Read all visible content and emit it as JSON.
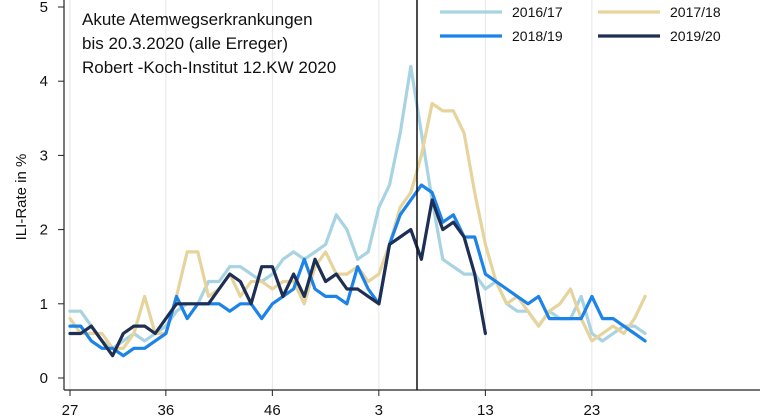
{
  "chart_data": {
    "type": "line",
    "title": "",
    "xlabel": "",
    "ylabel": "ILI-Rate in %",
    "ylim": [
      0,
      5
    ],
    "yticks": [
      0,
      1,
      2,
      3,
      4,
      5
    ],
    "x_start_week": 27,
    "x_tick_labels": [
      {
        "text": "27",
        "index": 0
      },
      {
        "text": "36",
        "index": 9
      },
      {
        "text": "46",
        "index": 19
      },
      {
        "text": "3",
        "index": 29
      },
      {
        "text": "13",
        "index": 39
      },
      {
        "text": "23",
        "index": 49
      }
    ],
    "annotation_lines": [
      "Akute Atemwegserkrankungen",
      "bis 20.3.2020 (alle Erreger)",
      "Robert -Koch-Institut 12.KW 2020"
    ],
    "legend_position": "top-right",
    "grid": "vertical-light",
    "series": [
      {
        "name": "2016/17",
        "color": "#a8d3e2",
        "values": [
          0.9,
          0.9,
          0.7,
          0.5,
          0.4,
          0.5,
          0.6,
          0.5,
          0.6,
          0.7,
          0.9,
          1.0,
          1.0,
          1.3,
          1.3,
          1.5,
          1.5,
          1.4,
          1.3,
          1.4,
          1.6,
          1.7,
          1.6,
          1.7,
          1.8,
          2.2,
          2.0,
          1.6,
          1.7,
          2.3,
          2.6,
          3.3,
          4.2,
          3.3,
          2.4,
          1.6,
          1.5,
          1.4,
          1.4,
          1.2,
          1.3,
          1.0,
          0.9,
          0.9,
          0.7,
          0.9,
          0.8,
          0.8,
          1.1,
          0.6,
          0.5,
          0.6,
          0.7,
          0.7,
          0.6
        ]
      },
      {
        "name": "2017/18",
        "color": "#e6d49c",
        "values": [
          0.8,
          0.6,
          0.6,
          0.6,
          0.4,
          0.4,
          0.6,
          1.1,
          0.6,
          0.6,
          1.1,
          1.7,
          1.7,
          1.1,
          1.2,
          1.4,
          1.1,
          1.3,
          1.3,
          1.2,
          1.3,
          1.3,
          1.0,
          1.5,
          1.7,
          1.4,
          1.4,
          1.5,
          1.3,
          1.4,
          1.8,
          2.3,
          2.5,
          3.0,
          3.7,
          3.6,
          3.6,
          3.3,
          2.5,
          1.8,
          1.3,
          1.0,
          1.1,
          0.9,
          0.7,
          0.9,
          1.0,
          1.2,
          0.8,
          0.5,
          0.6,
          0.7,
          0.6,
          0.8,
          1.1
        ]
      },
      {
        "name": "2018/19",
        "color": "#1c83e8",
        "values": [
          0.7,
          0.7,
          0.5,
          0.4,
          0.4,
          0.3,
          0.4,
          0.4,
          0.5,
          0.6,
          1.1,
          0.8,
          1.0,
          1.0,
          1.0,
          0.9,
          1.0,
          1.0,
          0.8,
          1.0,
          1.1,
          1.2,
          1.6,
          1.2,
          1.1,
          1.1,
          1.0,
          1.5,
          1.2,
          1.0,
          1.8,
          2.2,
          2.4,
          2.6,
          2.5,
          2.1,
          2.2,
          1.9,
          1.9,
          1.4,
          1.3,
          1.2,
          1.1,
          1.0,
          1.1,
          0.8,
          0.8,
          0.8,
          0.8,
          1.1,
          0.8,
          0.8,
          0.7,
          0.6,
          0.5
        ]
      },
      {
        "name": "2019/20",
        "color": "#1e2f56",
        "values": [
          0.6,
          0.6,
          0.7,
          0.5,
          0.3,
          0.6,
          0.7,
          0.7,
          0.6,
          0.8,
          1.0,
          1.0,
          1.0,
          1.0,
          1.2,
          1.4,
          1.3,
          1.0,
          1.5,
          1.5,
          1.1,
          1.4,
          1.1,
          1.6,
          1.3,
          1.4,
          1.2,
          1.2,
          1.1,
          1.0,
          1.8,
          1.9,
          2.0,
          1.6,
          2.4,
          2.0,
          2.1,
          1.9,
          1.4,
          0.6
        ]
      }
    ]
  }
}
